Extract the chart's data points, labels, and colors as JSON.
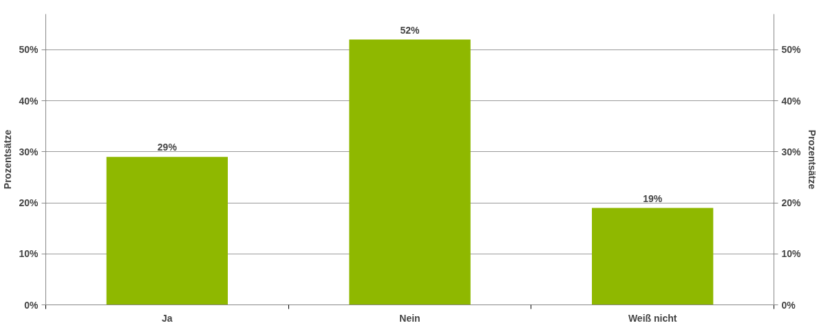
{
  "chart_data": {
    "type": "bar",
    "categories": [
      "Ja",
      "Nein",
      "Weiß nicht"
    ],
    "values": [
      29,
      52,
      19
    ],
    "value_labels": [
      "29%",
      "52%",
      "19%"
    ],
    "color": "#8fb800",
    "ylabel": "Prozentsätze",
    "y2label": "Prozentsätze",
    "ylim": [
      0,
      57
    ],
    "yticks": [
      {
        "value": 0,
        "label": "0%"
      },
      {
        "value": 10,
        "label": "10%"
      },
      {
        "value": 20,
        "label": "20%"
      },
      {
        "value": 30,
        "label": "30%"
      },
      {
        "value": 40,
        "label": "40%"
      },
      {
        "value": 50,
        "label": "50%"
      }
    ],
    "y2lim": [
      0,
      57
    ],
    "y2ticks": [
      {
        "value": 0,
        "label": "0%"
      },
      {
        "value": 10,
        "label": "10%"
      },
      {
        "value": 20,
        "label": "20%"
      },
      {
        "value": 30,
        "label": "30%"
      },
      {
        "value": 40,
        "label": "40%"
      },
      {
        "value": 50,
        "label": "50%"
      }
    ],
    "grid": "y"
  }
}
